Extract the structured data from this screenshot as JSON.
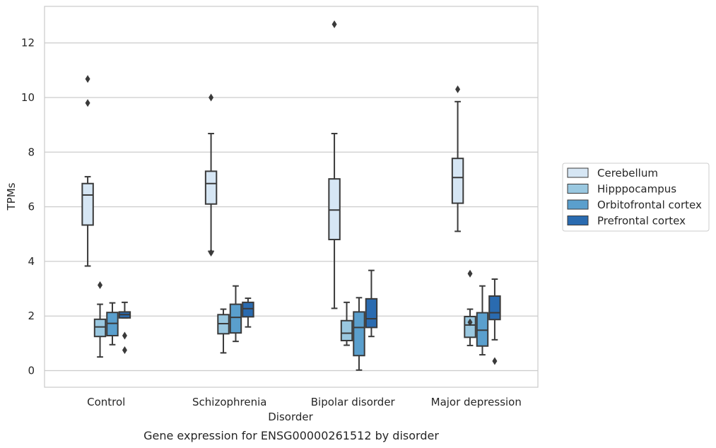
{
  "chart_data": {
    "type": "box",
    "caption": "Gene expression for ENSG00000261512 by disorder",
    "xlabel": "Disorder",
    "ylabel": "TPMs",
    "ylim": [
      -0.6,
      13.3
    ],
    "yticks": [
      0,
      2,
      4,
      6,
      8,
      10,
      12
    ],
    "grid": "horizontal",
    "legend_position": "right",
    "categories": [
      "Control",
      "Schizophrenia",
      "Bipolar disorder",
      "Major depression"
    ],
    "series": [
      {
        "name": "Cerebellum",
        "color": "#d6e6f4",
        "boxes": [
          {
            "q1": 5.33,
            "median": 6.43,
            "q3": 6.85,
            "whisker_low": 3.83,
            "whisker_high": 7.1,
            "outliers": [
              10.68,
              9.8
            ]
          },
          {
            "q1": 6.1,
            "median": 6.85,
            "q3": 7.3,
            "whisker_low": 4.37,
            "whisker_high": 8.68,
            "outliers": [
              10.0,
              4.32
            ]
          },
          {
            "q1": 4.8,
            "median": 5.88,
            "q3": 7.02,
            "whisker_low": 2.28,
            "whisker_high": 8.68,
            "outliers": [
              12.68
            ]
          },
          {
            "q1": 6.13,
            "median": 7.07,
            "q3": 7.77,
            "whisker_low": 5.1,
            "whisker_high": 9.85,
            "outliers": [
              10.3
            ]
          }
        ]
      },
      {
        "name": "Hipppocampus",
        "color": "#9ac8e0",
        "boxes": [
          {
            "q1": 1.25,
            "median": 1.6,
            "q3": 1.88,
            "whisker_low": 0.5,
            "whisker_high": 2.43,
            "outliers": [
              3.13
            ]
          },
          {
            "q1": 1.35,
            "median": 1.72,
            "q3": 2.05,
            "whisker_low": 0.65,
            "whisker_high": 2.25,
            "outliers": []
          },
          {
            "q1": 1.1,
            "median": 1.37,
            "q3": 1.83,
            "whisker_low": 0.93,
            "whisker_high": 2.5,
            "outliers": []
          },
          {
            "q1": 1.22,
            "median": 1.67,
            "q3": 1.98,
            "whisker_low": 0.92,
            "whisker_high": 2.25,
            "outliers": [
              3.55,
              1.77
            ]
          }
        ]
      },
      {
        "name": "Orbitofrontal cortex",
        "color": "#5a9fcd",
        "boxes": [
          {
            "q1": 1.28,
            "median": 1.73,
            "q3": 2.13,
            "whisker_low": 0.95,
            "whisker_high": 2.48,
            "outliers": []
          },
          {
            "q1": 1.38,
            "median": 1.95,
            "q3": 2.43,
            "whisker_low": 1.07,
            "whisker_high": 3.1,
            "outliers": []
          },
          {
            "q1": 0.55,
            "median": 1.58,
            "q3": 2.15,
            "whisker_low": 0.02,
            "whisker_high": 2.67,
            "outliers": []
          },
          {
            "q1": 0.9,
            "median": 1.48,
            "q3": 2.12,
            "whisker_low": 0.58,
            "whisker_high": 3.1,
            "outliers": []
          }
        ]
      },
      {
        "name": "Prefrontal cortex",
        "color": "#2a6bb0",
        "boxes": [
          {
            "q1": 1.93,
            "median": 2.05,
            "q3": 2.15,
            "whisker_low": 1.93,
            "whisker_high": 2.5,
            "outliers": [
              1.28,
              0.75
            ]
          },
          {
            "q1": 1.97,
            "median": 2.27,
            "q3": 2.5,
            "whisker_low": 1.6,
            "whisker_high": 2.65,
            "outliers": []
          },
          {
            "q1": 1.58,
            "median": 1.9,
            "q3": 2.63,
            "whisker_low": 1.25,
            "whisker_high": 3.67,
            "outliers": []
          },
          {
            "q1": 1.87,
            "median": 2.12,
            "q3": 2.73,
            "whisker_low": 1.13,
            "whisker_high": 3.35,
            "outliers": [
              0.35
            ]
          }
        ]
      }
    ]
  }
}
